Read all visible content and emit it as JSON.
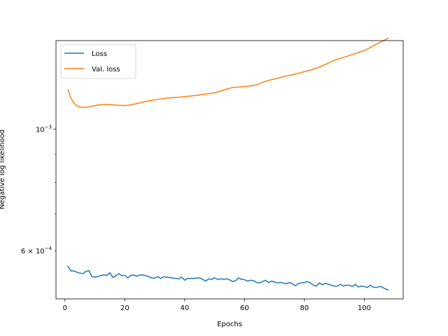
{
  "chart_data": {
    "type": "line",
    "title": "",
    "xlabel": "Epochs",
    "ylabel": "Negative log likelihood",
    "xlim": [
      -3,
      113
    ],
    "ylim": [
      0.00049,
      0.00145
    ],
    "yscale": "log",
    "x_ticks": [
      {
        "value": 0,
        "label": "0"
      },
      {
        "value": 20,
        "label": "20"
      },
      {
        "value": 40,
        "label": "40"
      },
      {
        "value": 60,
        "label": "60"
      },
      {
        "value": 80,
        "label": "80"
      },
      {
        "value": 100,
        "label": "100"
      }
    ],
    "y_major_ticks": [
      {
        "value": 0.001,
        "base": "10",
        "exp": "−3"
      }
    ],
    "y_minor_ticks": [
      {
        "value": 0.0006,
        "label_prefix": "6 × 10",
        "exp": "−4",
        "labeled": true
      },
      {
        "value": 0.0007,
        "labeled": false
      },
      {
        "value": 0.0008,
        "labeled": false
      },
      {
        "value": 0.0009,
        "labeled": false
      }
    ],
    "legend": {
      "position": "top-left"
    },
    "series": [
      {
        "name": "Loss",
        "color": "#1f77b4",
        "x": [
          1,
          2,
          3,
          4,
          5,
          6,
          7,
          8,
          9,
          10,
          11,
          12,
          13,
          14,
          15,
          16,
          17,
          18,
          19,
          20,
          21,
          22,
          23,
          24,
          25,
          26,
          27,
          28,
          29,
          30,
          31,
          32,
          33,
          34,
          35,
          36,
          37,
          38,
          39,
          40,
          41,
          42,
          43,
          44,
          45,
          46,
          47,
          48,
          49,
          50,
          51,
          52,
          53,
          54,
          55,
          56,
          57,
          58,
          59,
          60,
          61,
          62,
          63,
          64,
          65,
          66,
          67,
          68,
          69,
          70,
          71,
          72,
          73,
          74,
          75,
          76,
          77,
          78,
          79,
          80,
          81,
          82,
          83,
          84,
          85,
          86,
          87,
          88,
          89,
          90,
          91,
          92,
          93,
          94,
          95,
          96,
          97,
          98,
          99,
          100,
          101,
          102,
          103,
          104,
          105,
          106,
          107,
          108
        ],
        "y": [
          0.000562,
          0.000551,
          0.000551,
          0.000548,
          0.000546,
          0.000545,
          0.00055,
          0.000552,
          0.000538,
          0.000537,
          0.000538,
          0.000541,
          0.000542,
          0.000541,
          0.000547,
          0.000536,
          0.00054,
          0.000545,
          0.00054,
          0.000541,
          0.000535,
          0.000541,
          0.000542,
          0.000539,
          0.000542,
          0.000542,
          0.00054,
          0.000538,
          0.000535,
          0.000535,
          0.000538,
          0.000534,
          0.000538,
          0.000537,
          0.000536,
          0.000535,
          0.000534,
          0.000533,
          0.000537,
          0.00053,
          0.000534,
          0.000534,
          0.000534,
          0.000535,
          0.000535,
          0.000532,
          0.000528,
          0.000533,
          0.000532,
          0.000535,
          0.000532,
          0.000533,
          0.000532,
          0.000533,
          0.000531,
          0.000527,
          0.000529,
          0.000535,
          0.000532,
          0.000531,
          0.000528,
          0.00053,
          0.000529,
          0.000525,
          0.000524,
          0.000527,
          0.00053,
          0.000525,
          0.000528,
          0.000526,
          0.000524,
          0.000525,
          0.000524,
          0.000522,
          0.000525,
          0.000522,
          0.000518,
          0.000523,
          0.000524,
          0.000525,
          0.000527,
          0.000524,
          0.000519,
          0.000517,
          0.000524,
          0.00052,
          0.000523,
          0.000521,
          0.000519,
          0.000517,
          0.000517,
          0.000521,
          0.000517,
          0.000519,
          0.000519,
          0.000516,
          0.000521,
          0.000515,
          0.000517,
          0.000516,
          0.000514,
          0.000519,
          0.000515,
          0.000514,
          0.000516,
          0.000515,
          0.000511,
          0.000509
        ]
      },
      {
        "name": "Val. loss",
        "color": "#ff7f0e",
        "x": [
          1,
          2,
          3,
          4,
          5,
          6,
          7,
          8,
          9,
          10,
          12,
          14,
          16,
          18,
          20,
          22,
          24,
          26,
          28,
          30,
          32,
          34,
          36,
          38,
          40,
          44,
          48,
          50,
          52,
          54,
          56,
          58,
          60,
          62,
          64,
          66,
          68,
          70,
          72,
          74,
          76,
          78,
          80,
          82,
          84,
          86,
          88,
          90,
          92,
          94,
          96,
          98,
          100,
          102,
          104,
          106,
          108
        ],
        "y": [
          0.00118,
          0.001138,
          0.001115,
          0.001103,
          0.001097,
          0.001095,
          0.001096,
          0.001098,
          0.001101,
          0.001104,
          0.001108,
          0.001109,
          0.001107,
          0.001105,
          0.001104,
          0.001107,
          0.001113,
          0.00112,
          0.001126,
          0.00113,
          0.001135,
          0.001139,
          0.001141,
          0.001143,
          0.001146,
          0.001152,
          0.00116,
          0.001165,
          0.001173,
          0.001182,
          0.001191,
          0.001193,
          0.001196,
          0.001199,
          0.001204,
          0.001217,
          0.001227,
          0.001234,
          0.001242,
          0.00125,
          0.001256,
          0.001264,
          0.001273,
          0.001281,
          0.001291,
          0.001304,
          0.001319,
          0.001335,
          0.001346,
          0.001356,
          0.001368,
          0.001379,
          0.001391,
          0.001408,
          0.001428,
          0.001445,
          0.001465
        ]
      }
    ]
  }
}
